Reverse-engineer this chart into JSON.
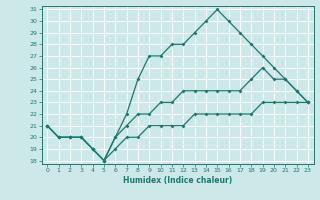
{
  "title": "",
  "xlabel": "Humidex (Indice chaleur)",
  "bg_color": "#cce8e8",
  "line_color": "#1a7a6e",
  "grid_color": "#ffffff",
  "xmin": 0,
  "xmax": 23,
  "ymin": 18,
  "ymax": 31,
  "x_ticks": [
    0,
    1,
    2,
    3,
    4,
    5,
    6,
    7,
    8,
    9,
    10,
    11,
    12,
    13,
    14,
    15,
    16,
    17,
    18,
    19,
    20,
    21,
    22,
    23
  ],
  "y_ticks": [
    18,
    19,
    20,
    21,
    22,
    23,
    24,
    25,
    26,
    27,
    28,
    29,
    30,
    31
  ],
  "line1": {
    "x": [
      0,
      1,
      2,
      3,
      4,
      5,
      6,
      7,
      8,
      9,
      10,
      11,
      12,
      13,
      14,
      15,
      16,
      17,
      18,
      19,
      20,
      21,
      22,
      23
    ],
    "y": [
      21,
      20,
      20,
      20,
      19,
      18,
      20,
      22,
      25,
      27,
      27,
      28,
      28,
      29,
      30,
      31,
      30,
      29,
      28,
      27,
      26,
      25,
      24,
      23
    ]
  },
  "line2": {
    "x": [
      0,
      1,
      2,
      3,
      4,
      5,
      6,
      7,
      8,
      9,
      10,
      11,
      12,
      13,
      14,
      15,
      16,
      17,
      18,
      19,
      20,
      21,
      22,
      23
    ],
    "y": [
      21,
      20,
      20,
      20,
      19,
      18,
      20,
      21,
      22,
      22,
      23,
      23,
      24,
      24,
      24,
      24,
      24,
      24,
      25,
      26,
      25,
      25,
      24,
      23
    ]
  },
  "line3": {
    "x": [
      0,
      1,
      2,
      3,
      4,
      5,
      6,
      7,
      8,
      9,
      10,
      11,
      12,
      13,
      14,
      15,
      16,
      17,
      18,
      19,
      20,
      21,
      22,
      23
    ],
    "y": [
      21,
      20,
      20,
      20,
      19,
      18,
      19,
      20,
      20,
      21,
      21,
      21,
      21,
      22,
      22,
      22,
      22,
      22,
      22,
      23,
      23,
      23,
      23,
      23
    ]
  }
}
